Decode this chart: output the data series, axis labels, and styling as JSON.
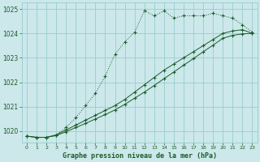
{
  "title": "Graphe pression niveau de la mer (hPa)",
  "background_color": "#cce8eb",
  "grid_color": "#99cccc",
  "line_color": "#1a5c28",
  "xlim": [
    -0.5,
    23.5
  ],
  "ylim": [
    1019.55,
    1025.25
  ],
  "xticks": [
    0,
    1,
    2,
    3,
    4,
    5,
    6,
    7,
    8,
    9,
    10,
    11,
    12,
    13,
    14,
    15,
    16,
    17,
    18,
    19,
    20,
    21,
    22,
    23
  ],
  "yticks": [
    1020,
    1021,
    1022,
    1023,
    1024,
    1025
  ],
  "series1_x": [
    0,
    1,
    2,
    3,
    4,
    5,
    6,
    7,
    8,
    9,
    10,
    11,
    12,
    13,
    14,
    15,
    16,
    17,
    18,
    19,
    20,
    21,
    22,
    23
  ],
  "series1_y": [
    1019.8,
    1019.75,
    1019.75,
    1019.85,
    1020.15,
    1020.55,
    1021.05,
    1021.55,
    1022.25,
    1023.15,
    1023.65,
    1024.05,
    1024.92,
    1024.72,
    1024.92,
    1024.62,
    1024.72,
    1024.72,
    1024.72,
    1024.82,
    1024.72,
    1024.62,
    1024.35,
    1024.05
  ],
  "series2_x": [
    0,
    1,
    2,
    3,
    4,
    5,
    6,
    7,
    8,
    9,
    10,
    11,
    12,
    13,
    14,
    15,
    16,
    17,
    18,
    19,
    20,
    21,
    22,
    23
  ],
  "series2_y": [
    1019.8,
    1019.75,
    1019.75,
    1019.85,
    1020.05,
    1020.25,
    1020.45,
    1020.65,
    1020.85,
    1021.05,
    1021.3,
    1021.6,
    1021.9,
    1022.2,
    1022.5,
    1022.75,
    1023.0,
    1023.25,
    1023.5,
    1023.75,
    1024.0,
    1024.1,
    1024.15,
    1024.0
  ],
  "series3_x": [
    0,
    1,
    2,
    3,
    4,
    5,
    6,
    7,
    8,
    9,
    10,
    11,
    12,
    13,
    14,
    15,
    16,
    17,
    18,
    19,
    20,
    21,
    22,
    23
  ],
  "series3_y": [
    1019.8,
    1019.75,
    1019.75,
    1019.82,
    1019.98,
    1020.15,
    1020.32,
    1020.5,
    1020.68,
    1020.87,
    1021.1,
    1021.35,
    1021.6,
    1021.87,
    1022.15,
    1022.42,
    1022.7,
    1022.97,
    1023.25,
    1023.52,
    1023.8,
    1023.92,
    1023.98,
    1024.0
  ],
  "xlabel_fontsize": 6.0,
  "ytick_fontsize": 5.5,
  "xtick_fontsize": 4.5
}
